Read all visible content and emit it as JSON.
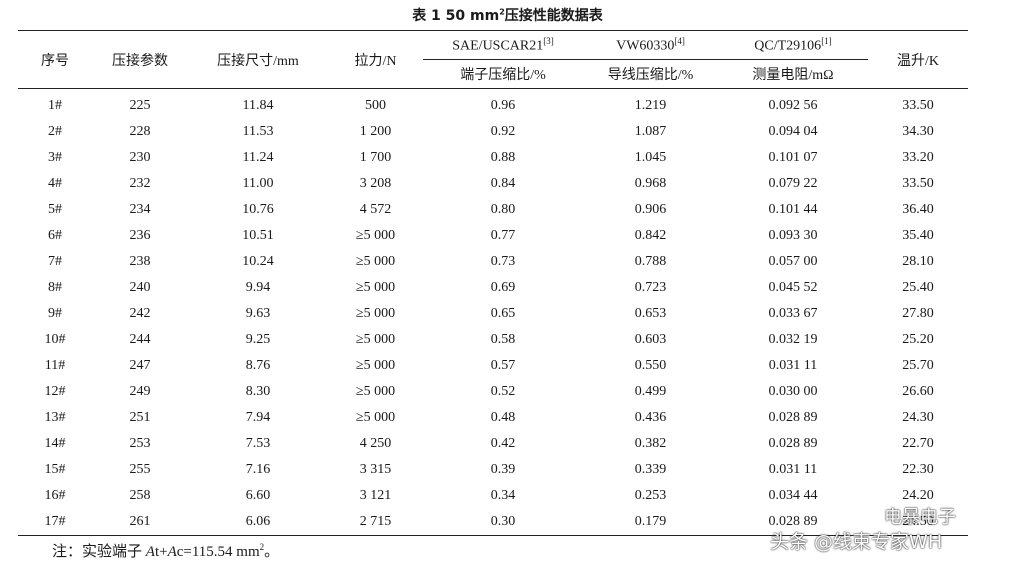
{
  "title": {
    "prefix": "表 1    50 mm",
    "sup": "2",
    "suffix": "压接性能数据表"
  },
  "headers": {
    "seq": "序号",
    "param": "压接参数",
    "size": "压接尺寸/mm",
    "force": "拉力/N",
    "g1": {
      "name": "SAE/USCAR21",
      "ref": "[3]",
      "sub": "端子压缩比/%"
    },
    "g2": {
      "name": "VW60330",
      "ref": "[4]",
      "sub": "导线压缩比/%"
    },
    "g3": {
      "name": "QC/T29106",
      "ref": "[1]",
      "sub": "测量电阻/mΩ"
    },
    "temp": "温升/K"
  },
  "rows": [
    [
      "1#",
      "225",
      "11.84",
      "500",
      "0.96",
      "1.219",
      "0.092 56",
      "33.50"
    ],
    [
      "2#",
      "228",
      "11.53",
      "1 200",
      "0.92",
      "1.087",
      "0.094 04",
      "34.30"
    ],
    [
      "3#",
      "230",
      "11.24",
      "1 700",
      "0.88",
      "1.045",
      "0.101 07",
      "33.20"
    ],
    [
      "4#",
      "232",
      "11.00",
      "3 208",
      "0.84",
      "0.968",
      "0.079 22",
      "33.50"
    ],
    [
      "5#",
      "234",
      "10.76",
      "4 572",
      "0.80",
      "0.906",
      "0.101 44",
      "36.40"
    ],
    [
      "6#",
      "236",
      "10.51",
      "≥5 000",
      "0.77",
      "0.842",
      "0.093 30",
      "35.40"
    ],
    [
      "7#",
      "238",
      "10.24",
      "≥5 000",
      "0.73",
      "0.788",
      "0.057 00",
      "28.10"
    ],
    [
      "8#",
      "240",
      "9.94",
      "≥5 000",
      "0.69",
      "0.723",
      "0.045 52",
      "25.40"
    ],
    [
      "9#",
      "242",
      "9.63",
      "≥5 000",
      "0.65",
      "0.653",
      "0.033 67",
      "27.80"
    ],
    [
      "10#",
      "244",
      "9.25",
      "≥5 000",
      "0.58",
      "0.603",
      "0.032 19",
      "25.20"
    ],
    [
      "11#",
      "247",
      "8.76",
      "≥5 000",
      "0.57",
      "0.550",
      "0.031 11",
      "25.70"
    ],
    [
      "12#",
      "249",
      "8.30",
      "≥5 000",
      "0.52",
      "0.499",
      "0.030 00",
      "26.60"
    ],
    [
      "13#",
      "251",
      "7.94",
      "≥5 000",
      "0.48",
      "0.436",
      "0.028 89",
      "24.30"
    ],
    [
      "14#",
      "253",
      "7.53",
      "4 250",
      "0.42",
      "0.382",
      "0.028 89",
      "22.70"
    ],
    [
      "15#",
      "255",
      "7.16",
      "3 315",
      "0.39",
      "0.339",
      "0.031 11",
      "22.30"
    ],
    [
      "16#",
      "258",
      "6.60",
      "3 121",
      "0.34",
      "0.253",
      "0.034 44",
      "24.20"
    ],
    [
      "17#",
      "261",
      "6.06",
      "2 715",
      "0.30",
      "0.179",
      "0.028 89",
      "24.50"
    ]
  ],
  "note": {
    "label": "注：实验端子 ",
    "a1": "A",
    "t1": "t+",
    "a2": "A",
    "t2": "c=115.54 mm",
    "sup": "2",
    "end": "。"
  },
  "watermark": {
    "line1": "电暴电子",
    "line2": "头条 @线束专家WH"
  }
}
